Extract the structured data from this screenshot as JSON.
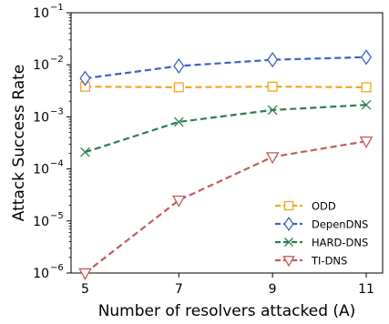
{
  "chart_data": {
    "type": "line",
    "xlabel": "Number of resolvers attacked (A)",
    "ylabel": "Attack Success Rate",
    "x": [
      5,
      7,
      9,
      11
    ],
    "xlim": [
      4.7,
      11.35
    ],
    "xticks": [
      5,
      7,
      9,
      11
    ],
    "yscale": "log",
    "ylim": [
      1e-06,
      0.1
    ],
    "yticks": [
      {
        "value": 1e-06,
        "base": "10",
        "exp": "−6"
      },
      {
        "value": 1e-05,
        "base": "10",
        "exp": "−5"
      },
      {
        "value": 0.0001,
        "base": "10",
        "exp": "−4"
      },
      {
        "value": 0.001,
        "base": "10",
        "exp": "−3"
      },
      {
        "value": 0.01,
        "base": "10",
        "exp": "−2"
      },
      {
        "value": 0.1,
        "base": "10",
        "exp": "−1"
      }
    ],
    "grid": false,
    "legend_position": "lower-right",
    "series": [
      {
        "name": "ODD",
        "values": [
          0.0038,
          0.0037,
          0.0038,
          0.0037
        ],
        "color": "#f5a623",
        "marker": "square"
      },
      {
        "name": "DepenDNS",
        "values": [
          0.0055,
          0.0095,
          0.0125,
          0.014
        ],
        "color": "#3f5fd4",
        "marker": "diamond"
      },
      {
        "name": "HARD-DNS",
        "values": [
          0.00021,
          0.0008,
          0.00135,
          0.0017
        ],
        "color": "#2e7d4f",
        "marker": "x"
      },
      {
        "name": "TI-DNS",
        "values": [
          1e-06,
          2.5e-05,
          0.00017,
          0.00034
        ],
        "color": "#c85a5a",
        "marker": "triangle-down"
      }
    ]
  }
}
